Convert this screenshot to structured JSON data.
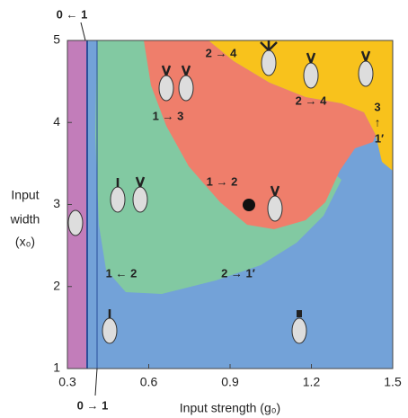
{
  "chart_data": {
    "type": "phase-diagram",
    "x_label": "Input strength  (g₀)",
    "y_label": [
      "Input",
      "width",
      "(x₀)"
    ],
    "xlim": [
      0.3,
      1.5
    ],
    "xticks": [
      0.3,
      0.6,
      0.9,
      1.2,
      1.5
    ],
    "ylim": [
      1,
      5
    ],
    "yticks": [
      1,
      2,
      3,
      4,
      5
    ],
    "annotations": [
      "0 ← 1",
      "0 → 1",
      "1 ← 2",
      "2 → 1′",
      "1 → 2",
      "1 → 3",
      "2 → 4",
      "2 → 4",
      "3",
      "↑",
      "1′"
    ]
  }
}
